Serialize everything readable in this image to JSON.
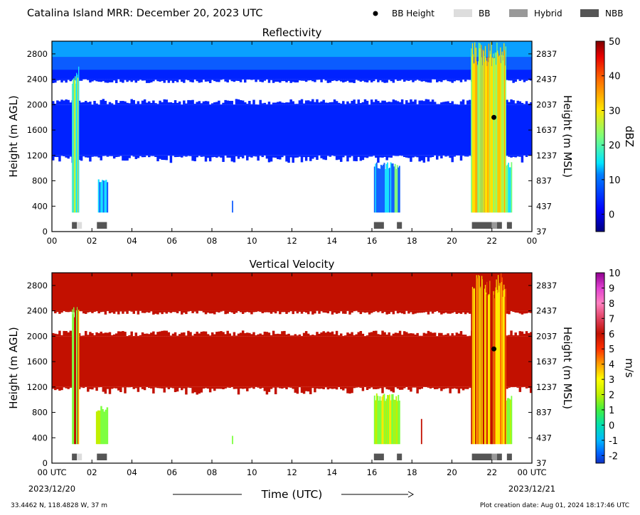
{
  "header": {
    "title": "Catalina Island MRR:  December 20, 2023 UTC"
  },
  "legend": [
    {
      "label": "BB Height",
      "kind": "dot",
      "color": "#000000"
    },
    {
      "label": "BB",
      "kind": "box",
      "color": "#dddddd"
    },
    {
      "label": "Hybrid",
      "kind": "box",
      "color": "#999999"
    },
    {
      "label": "NBB",
      "kind": "box",
      "color": "#555555"
    }
  ],
  "chart_data": [
    {
      "type": "heatmap",
      "title": "Reflectivity",
      "ylabel": "Height (m AGL)",
      "ylabel_right": "Height (m MSL)",
      "x_tick_labels": [
        "00",
        "02",
        "04",
        "06",
        "08",
        "10",
        "12",
        "14",
        "16",
        "18",
        "20",
        "22",
        "00"
      ],
      "xlim": [
        0,
        24
      ],
      "y_ticks": [
        0,
        400,
        800,
        1200,
        1600,
        2000,
        2400,
        2800
      ],
      "y_ticks_right": [
        37,
        437,
        837,
        1237,
        1637,
        2037,
        2437,
        2837
      ],
      "ylim": [
        0,
        3000
      ],
      "colorbar": {
        "label": "dBZ",
        "ticks": [
          0,
          10,
          20,
          30,
          40,
          50
        ],
        "range": [
          -5,
          50
        ],
        "colormap": "jet"
      },
      "bright_band_height": [
        {
          "time_utc": 22.1,
          "height_m": 1800
        }
      ],
      "bb_type_bars": [
        {
          "start": 1.0,
          "end": 1.25,
          "type": "NBB"
        },
        {
          "start": 1.25,
          "end": 1.5,
          "type": "BB"
        },
        {
          "start": 2.25,
          "end": 2.75,
          "type": "NBB"
        },
        {
          "start": 16.1,
          "end": 16.6,
          "type": "NBB"
        },
        {
          "start": 17.25,
          "end": 17.5,
          "type": "NBB"
        },
        {
          "start": 21.0,
          "end": 22.0,
          "type": "NBB"
        },
        {
          "start": 22.0,
          "end": 22.25,
          "type": "Hybrid"
        },
        {
          "start": 22.25,
          "end": 22.5,
          "type": "NBB"
        },
        {
          "start": 22.75,
          "end": 23.0,
          "type": "NBB"
        }
      ]
    },
    {
      "type": "heatmap",
      "title": "Vertical Velocity",
      "ylabel": "Height (m AGL)",
      "ylabel_right": "Height (m MSL)",
      "x_tick_labels": [
        "00 UTC",
        "02",
        "04",
        "06",
        "08",
        "10",
        "12",
        "14",
        "16",
        "18",
        "20",
        "22",
        "00 UTC"
      ],
      "x_date_labels": [
        "2023/12/20",
        "2023/12/21"
      ],
      "xlabel": "Time (UTC)",
      "xlim": [
        0,
        24
      ],
      "y_ticks": [
        0,
        400,
        800,
        1200,
        1600,
        2000,
        2400,
        2800
      ],
      "y_ticks_right": [
        37,
        437,
        837,
        1237,
        1637,
        2037,
        2437,
        2837
      ],
      "ylim": [
        0,
        3000
      ],
      "colorbar": {
        "label": "m/s",
        "ticks": [
          -2,
          -1,
          0,
          1,
          2,
          3,
          4,
          5,
          6,
          7,
          8,
          9,
          10
        ],
        "range": [
          -2.5,
          10
        ]
      },
      "bright_band_height": [
        {
          "time_utc": 22.1,
          "height_m": 1800
        }
      ],
      "bb_type_bars": [
        {
          "start": 1.0,
          "end": 1.25,
          "type": "NBB"
        },
        {
          "start": 1.25,
          "end": 1.5,
          "type": "BB"
        },
        {
          "start": 2.25,
          "end": 2.75,
          "type": "NBB"
        },
        {
          "start": 16.1,
          "end": 16.6,
          "type": "NBB"
        },
        {
          "start": 17.25,
          "end": 17.5,
          "type": "NBB"
        },
        {
          "start": 21.0,
          "end": 22.0,
          "type": "NBB"
        },
        {
          "start": 22.0,
          "end": 22.25,
          "type": "Hybrid"
        },
        {
          "start": 22.25,
          "end": 22.5,
          "type": "NBB"
        },
        {
          "start": 22.75,
          "end": 23.0,
          "type": "NBB"
        }
      ]
    }
  ],
  "footer": {
    "location": "33.4462 N, 118.4828 W, 37 m",
    "creation": "Plot creation date: Aug 01, 2024 18:17:46 UTC"
  }
}
